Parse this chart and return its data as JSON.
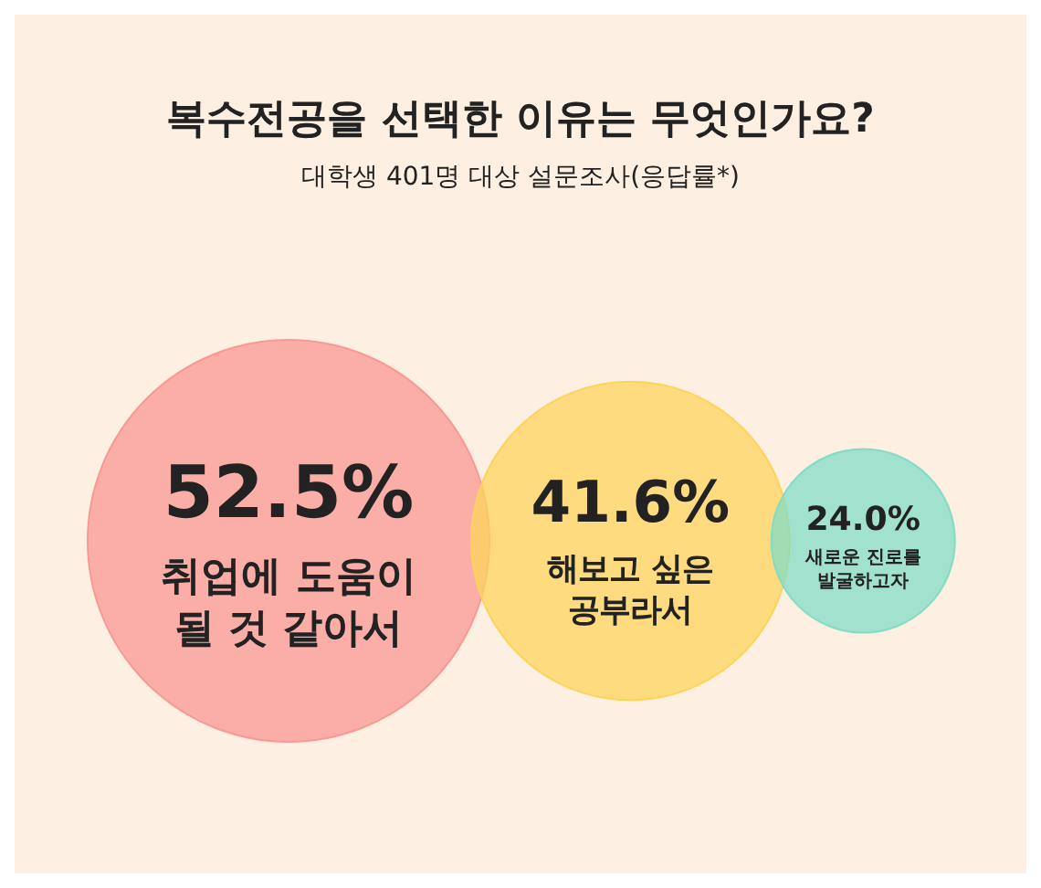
{
  "chart_data": {
    "type": "other",
    "title": "복수전공을 선택한 이유는 무엇인가요?",
    "subtitle": "대학생 401명 대상 설문조사(응답률*)",
    "categories": [
      "취업에 도움이\n될 것 같아서",
      "해보고 싶은\n공부라서",
      "새로운 진로를\n발굴하고자"
    ],
    "values": [
      52.5,
      41.6,
      24.0
    ],
    "value_labels": [
      "52.5%",
      "41.6%",
      "24.0%"
    ],
    "colors": [
      "#f99894",
      "#fcd45c",
      "#82dcc6"
    ]
  }
}
